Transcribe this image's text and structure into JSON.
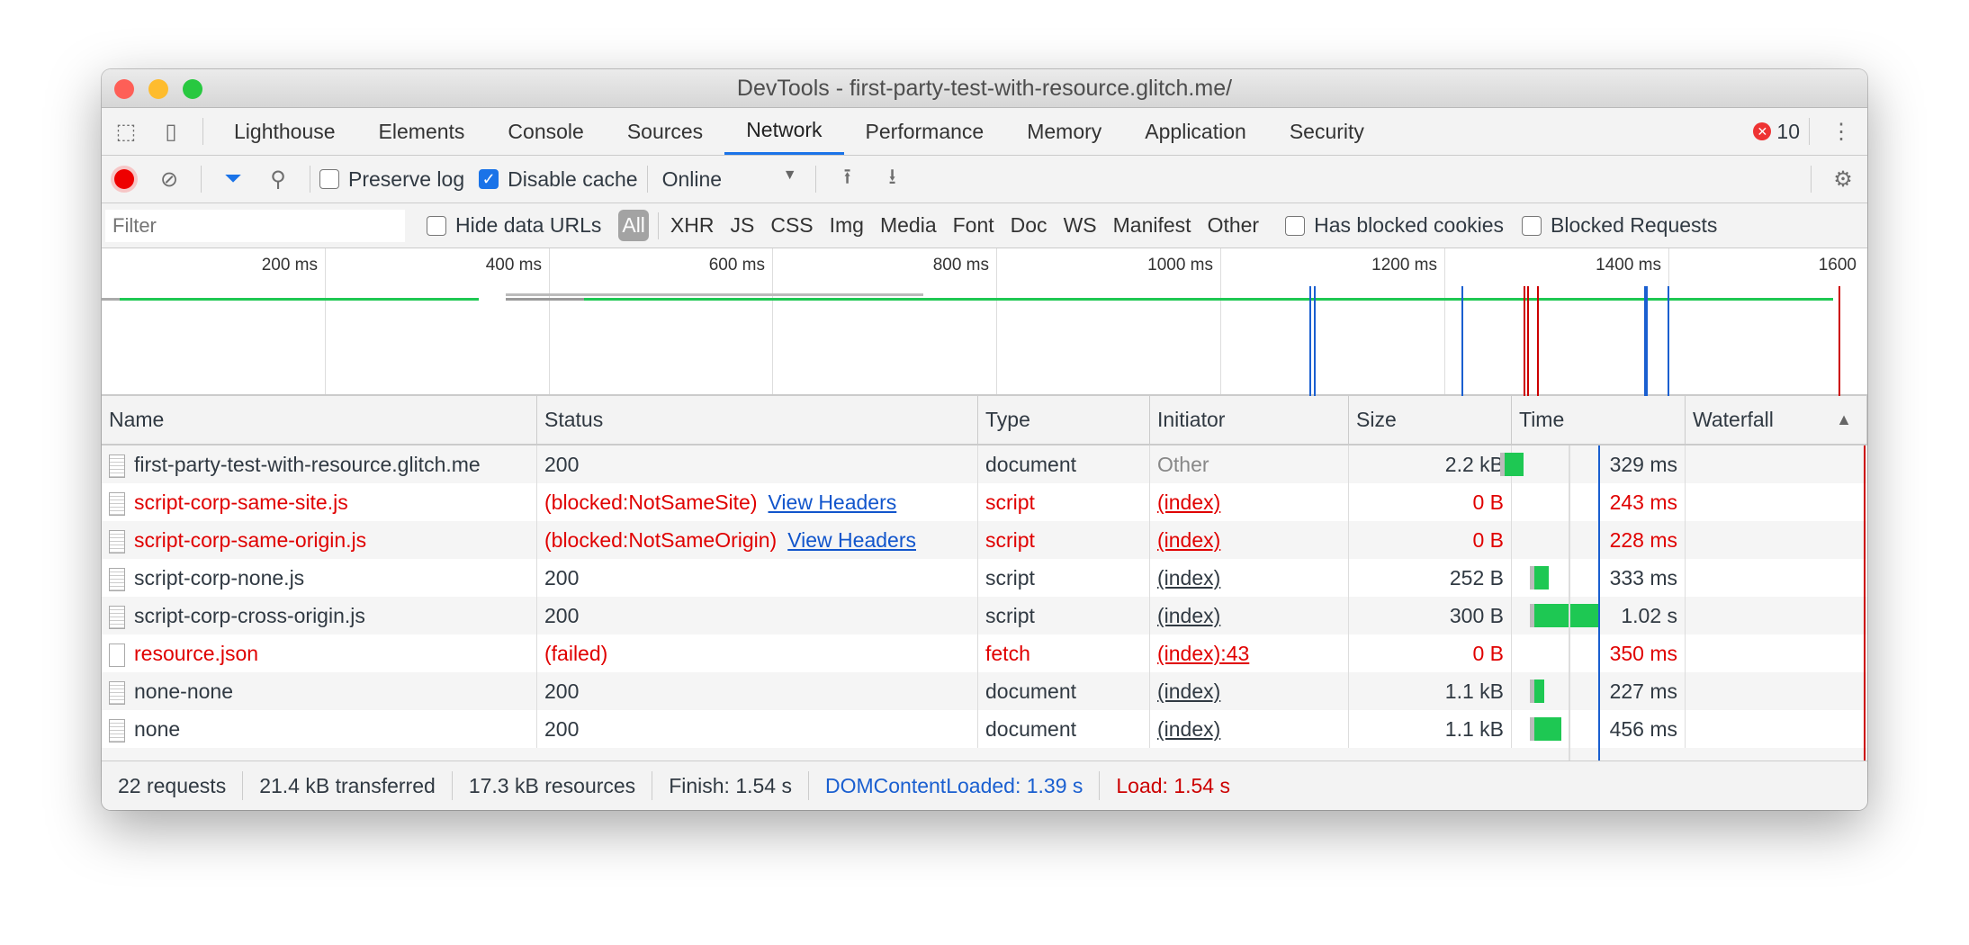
{
  "window": {
    "title": "DevTools - first-party-test-with-resource.glitch.me/"
  },
  "tabs": [
    "Lighthouse",
    "Elements",
    "Console",
    "Sources",
    "Network",
    "Performance",
    "Memory",
    "Application",
    "Security"
  ],
  "active_tab": "Network",
  "error_count": "10",
  "toolbar": {
    "preserve_log": "Preserve log",
    "preserve_log_checked": false,
    "disable_cache": "Disable cache",
    "disable_cache_checked": true,
    "throttle": "Online"
  },
  "filterbar": {
    "placeholder": "Filter",
    "hide_data_urls": "Hide data URLs",
    "types": [
      "All",
      "XHR",
      "JS",
      "CSS",
      "Img",
      "Media",
      "Font",
      "Doc",
      "WS",
      "Manifest",
      "Other"
    ],
    "has_blocked_cookies": "Has blocked cookies",
    "blocked_requests": "Blocked Requests"
  },
  "overview": {
    "ticks": [
      "200 ms",
      "400 ms",
      "600 ms",
      "800 ms",
      "1000 ms",
      "1200 ms",
      "1400 ms",
      "1600"
    ],
    "colors": {
      "dom_content_loaded": "#1a5fd0",
      "load": "#cc0000",
      "bar": "#1ec853"
    }
  },
  "table": {
    "columns": [
      "Name",
      "Status",
      "Type",
      "Initiator",
      "Size",
      "Time",
      "Waterfall"
    ],
    "rows": [
      {
        "name": "first-party-test-with-resource.glitch.me",
        "status": "200",
        "link": "",
        "type": "document",
        "initiator": "Other",
        "size": "2.2 kB",
        "time": "329 ms",
        "error": false
      },
      {
        "name": "script-corp-same-site.js",
        "status": "(blocked:NotSameSite)",
        "link": "View Headers",
        "type": "script",
        "initiator": "(index)",
        "size": "0 B",
        "time": "243 ms",
        "error": true
      },
      {
        "name": "script-corp-same-origin.js",
        "status": "(blocked:NotSameOrigin)",
        "link": "View Headers",
        "type": "script",
        "initiator": "(index)",
        "size": "0 B",
        "time": "228 ms",
        "error": true
      },
      {
        "name": "script-corp-none.js",
        "status": "200",
        "link": "",
        "type": "script",
        "initiator": "(index)",
        "size": "252 B",
        "time": "333 ms",
        "error": false
      },
      {
        "name": "script-corp-cross-origin.js",
        "status": "200",
        "link": "",
        "type": "script",
        "initiator": "(index)",
        "size": "300 B",
        "time": "1.02 s",
        "error": false
      },
      {
        "name": "resource.json",
        "status": "(failed)",
        "link": "",
        "type": "fetch",
        "initiator": "(index):43",
        "size": "0 B",
        "time": "350 ms",
        "error": true
      },
      {
        "name": "none-none",
        "status": "200",
        "link": "",
        "type": "document",
        "initiator": "(index)",
        "size": "1.1 kB",
        "time": "227 ms",
        "error": false
      },
      {
        "name": "none",
        "status": "200",
        "link": "",
        "type": "document",
        "initiator": "(index)",
        "size": "1.1 kB",
        "time": "456 ms",
        "error": false
      }
    ]
  },
  "statusbar": {
    "requests": "22 requests",
    "transferred": "21.4 kB transferred",
    "resources": "17.3 kB resources",
    "finish": "Finish: 1.54 s",
    "dcl": "DOMContentLoaded: 1.39 s",
    "load": "Load: 1.54 s"
  }
}
